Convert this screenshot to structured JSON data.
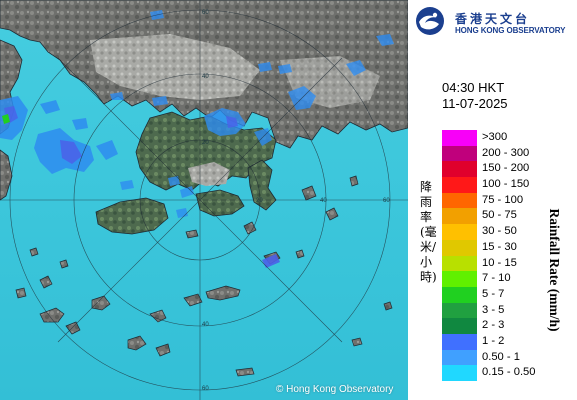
{
  "map": {
    "copyright": "© Hong Kong Observatory",
    "range_ring_labels": [
      "20",
      "40",
      "60",
      "60",
      "40",
      "20",
      "40",
      "60"
    ]
  },
  "header": {
    "logo_chinese": "香港天文台",
    "logo_english": "HONG KONG OBSERVATORY"
  },
  "timestamp": {
    "time": "04:30 HKT",
    "date": "11-07-2025"
  },
  "legend": {
    "title_chinese": "降雨率(毫米/小時)",
    "title_english": "Rainfall Rate (mm/h)",
    "ranges": [
      {
        "label": ">300",
        "color": "#f800f8"
      },
      {
        "label": "200 - 300",
        "color": "#c0007c"
      },
      {
        "label": "150 - 200",
        "color": "#e0002c"
      },
      {
        "label": "100 - 150",
        "color": "#ff1818"
      },
      {
        "label": "75 - 100",
        "color": "#ff6600"
      },
      {
        "label": "50 - 75",
        "color": "#f2a000"
      },
      {
        "label": "30 - 50",
        "color": "#ffc000"
      },
      {
        "label": "15 - 30",
        "color": "#e0c800"
      },
      {
        "label": "10 - 15",
        "color": "#b8e000"
      },
      {
        "label": "7 - 10",
        "color": "#60f000"
      },
      {
        "label": "5 - 7",
        "color": "#20d020"
      },
      {
        "label": "3 - 5",
        "color": "#20a040"
      },
      {
        "label": "2 - 3",
        "color": "#108840"
      },
      {
        "label": "1 - 2",
        "color": "#4070ff"
      },
      {
        "label": "0.50 - 1",
        "color": "#40a0ff"
      },
      {
        "label": "0.15 - 0.50",
        "color": "#20d8ff"
      }
    ]
  },
  "colors": {
    "sea": "#3ec9dc",
    "land": "#6f6f6c",
    "rain_light": "#2e8cf0",
    "rain_heavy": "#4b60e8",
    "ring": "#1e2a33"
  }
}
